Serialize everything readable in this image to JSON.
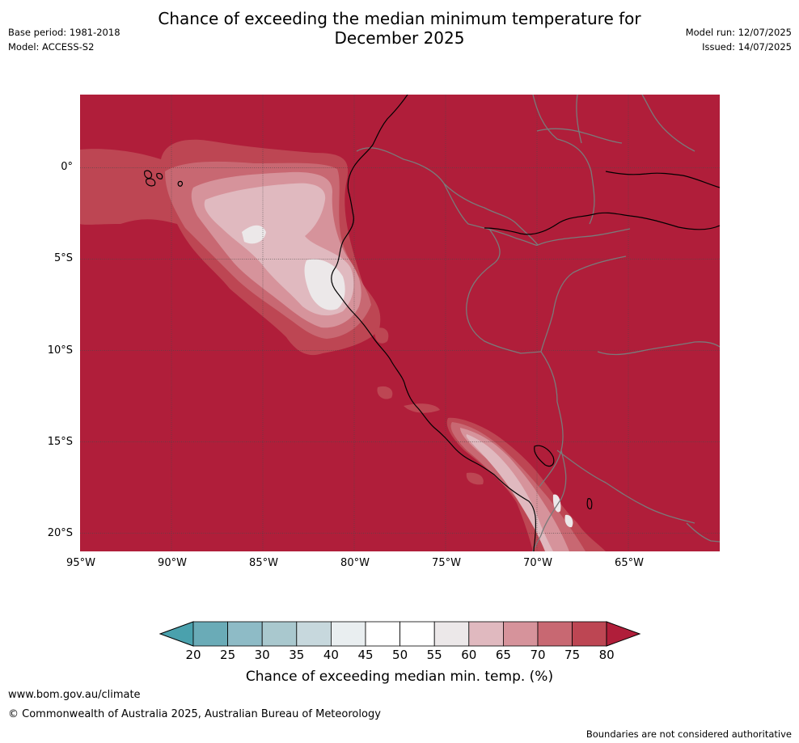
{
  "header": {
    "title_line1": "Chance of exceeding the median minimum temperature for",
    "title_line2": "December 2025",
    "base_period": "Base period: 1981-2018",
    "model": "Model: ACCESS-S2",
    "model_run": "Model run: 12/07/2025",
    "issued": "Issued: 14/07/2025"
  },
  "map": {
    "region": "western South America and eastern Pacific",
    "lat_labels": [
      "0°",
      "5°S",
      "10°S",
      "15°S",
      "20°S"
    ],
    "lon_labels": [
      "95°W",
      "90°W",
      "85°W",
      "80°W",
      "75°W",
      "70°W",
      "65°W"
    ],
    "lat_range": [
      -21,
      4
    ],
    "lon_range": [
      -95,
      -60
    ],
    "dominant_category": "80+",
    "colors": {
      "c_lt20": "#4aa1ad",
      "c20_25": "#6aabb7",
      "c25_30": "#8ebbc6",
      "c30_35": "#a9c8ce",
      "c35_40": "#c7d8dd",
      "c40_45": "#e9eef0",
      "c45_50": "#ffffff",
      "c50_55": "#ffffff",
      "c55_60": "#ece8e9",
      "c60_65": "#e0b9bf",
      "c65_70": "#d6939b",
      "c70_75": "#c86872",
      "c75_80": "#bd4653",
      "c80_plus": "#b01e3a",
      "coast": "#000000",
      "border": "#7a7a7a",
      "grid": "#4a4a4a"
    }
  },
  "colorbar": {
    "ticks": [
      "20",
      "25",
      "30",
      "35",
      "40",
      "45",
      "50",
      "55",
      "60",
      "65",
      "70",
      "75",
      "80"
    ],
    "label": "Chance of exceeding median min. temp. (%)"
  },
  "footer": {
    "url": "www.bom.gov.au/climate",
    "copyright": "© Commonwealth of Australia 2025, Australian Bureau of Meteorology",
    "disclaimer": "Boundaries are not considered authoritative"
  }
}
